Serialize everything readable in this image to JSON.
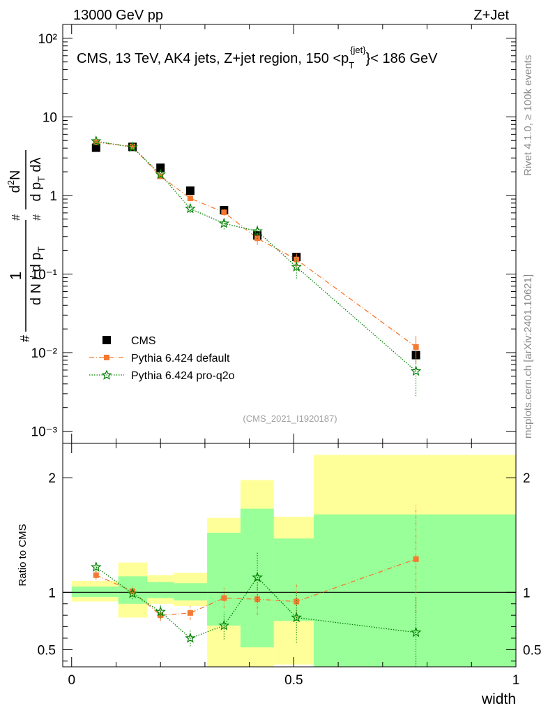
{
  "header": {
    "energy_label": "13000 GeV pp",
    "process_label": "Z+Jet"
  },
  "side_labels": {
    "rivet": "Rivet 4.1.0, ≥ 100k events",
    "mcplots": "mcplots.cern.ch [arXiv:2401.10621]"
  },
  "chart_data": [
    {
      "type": "scatter",
      "panel": "main",
      "title_parts": {
        "prefix": "CMS, 13 TeV, AK4 jets, Z+jet region, 150 <p",
        "sub": "T",
        "sup": "{jet}",
        "suffix": "}< 186 GeV"
      },
      "ylabel": "1/(dN/dpT) d²N/(dpT dλ)",
      "yscale": "log",
      "ylim": [
        0.0007,
        150
      ],
      "xlim": [
        -0.02,
        1.0
      ],
      "ytick_labels": {
        "1e-3": "10⁻³",
        "1e-2": "10⁻²",
        "1e-1": "10⁻¹",
        "1e0": "1",
        "1e1": "10",
        "1e2": "10²"
      },
      "watermark": "(CMS_2021_I1920187)",
      "legend_position": "lower-left",
      "series": [
        {
          "name": "CMS",
          "color": "#000000",
          "marker": "square",
          "x": [
            0.055,
            0.137,
            0.2,
            0.267,
            0.343,
            0.418,
            0.506,
            0.775
          ],
          "y": [
            4.05,
            4.15,
            2.25,
            1.15,
            0.65,
            0.31,
            0.165,
            0.0093
          ],
          "bin_edges": [
            0.0,
            0.105,
            0.17,
            0.23,
            0.305,
            0.38,
            0.455,
            0.545,
            1.0
          ]
        },
        {
          "name": "Pythia 6.424 default",
          "color": "#f47a30",
          "marker": "square-small",
          "line": "dashdot",
          "x": [
            0.055,
            0.137,
            0.2,
            0.267,
            0.343,
            0.418,
            0.506,
            0.775
          ],
          "y": [
            4.75,
            4.2,
            1.75,
            0.92,
            0.61,
            0.285,
            0.153,
            0.0118
          ],
          "yerr": [
            0.15,
            0.15,
            0.1,
            0.07,
            0.06,
            0.05,
            0.03,
            0.0045
          ]
        },
        {
          "name": "Pythia 6.424 pro-q2o",
          "color": "#008000",
          "marker": "star",
          "line": "dotted",
          "x": [
            0.055,
            0.137,
            0.2,
            0.267,
            0.343,
            0.418,
            0.506,
            0.775
          ],
          "y": [
            4.9,
            4.1,
            1.85,
            0.68,
            0.44,
            0.35,
            0.123,
            0.0058
          ],
          "yerr": [
            0.15,
            0.15,
            0.12,
            0.08,
            0.07,
            0.07,
            0.035,
            0.003
          ]
        }
      ]
    },
    {
      "type": "scatter",
      "panel": "ratio",
      "ylabel": "Ratio to CMS",
      "xlabel": "width",
      "ylim": [
        0.35,
        2.3
      ],
      "xlim": [
        -0.02,
        1.0
      ],
      "xticks": [
        0,
        0.5,
        1
      ],
      "xtick_labels": [
        "0",
        "0.5",
        "1"
      ],
      "yticks": [
        0.5,
        1,
        2
      ],
      "ytick_labels": [
        "0.5",
        "1",
        "2"
      ],
      "reference_line": 1,
      "uncertainty_bands": {
        "bin_edges": [
          0.0,
          0.105,
          0.17,
          0.23,
          0.305,
          0.38,
          0.455,
          0.545,
          1.0
        ],
        "yellow_low": [
          0.92,
          0.78,
          0.9,
          0.88,
          0.35,
          0.35,
          0.37,
          0.35
        ],
        "yellow_high": [
          1.1,
          1.26,
          1.15,
          1.17,
          1.65,
          1.98,
          1.66,
          2.2
        ],
        "green_low": [
          0.96,
          0.9,
          0.95,
          0.93,
          0.71,
          0.52,
          0.75,
          0.35
        ],
        "green_high": [
          1.05,
          1.14,
          1.09,
          1.08,
          1.52,
          1.73,
          1.47,
          1.68
        ],
        "yellow_color": "#ffff99",
        "green_color": "#99ff99"
      },
      "series": [
        {
          "name": "Pythia 6.424 default",
          "color": "#f47a30",
          "x": [
            0.055,
            0.137,
            0.2,
            0.267,
            0.343,
            0.418,
            0.506,
            0.775
          ],
          "y": [
            1.15,
            1.01,
            0.8,
            0.82,
            0.95,
            0.94,
            0.92,
            1.29
          ],
          "yerr": [
            0.04,
            0.05,
            0.05,
            0.06,
            0.09,
            0.14,
            0.15,
            0.47
          ]
        },
        {
          "name": "Pythia 6.424 pro-q2o",
          "color": "#008000",
          "x": [
            0.055,
            0.137,
            0.2,
            0.267,
            0.343,
            0.418,
            0.506,
            0.775
          ],
          "y": [
            1.22,
            0.99,
            0.83,
            0.6,
            0.71,
            1.13,
            0.78,
            0.65
          ],
          "yerr": [
            0.04,
            0.05,
            0.06,
            0.07,
            0.12,
            0.22,
            0.22,
            0.32
          ]
        }
      ]
    }
  ]
}
